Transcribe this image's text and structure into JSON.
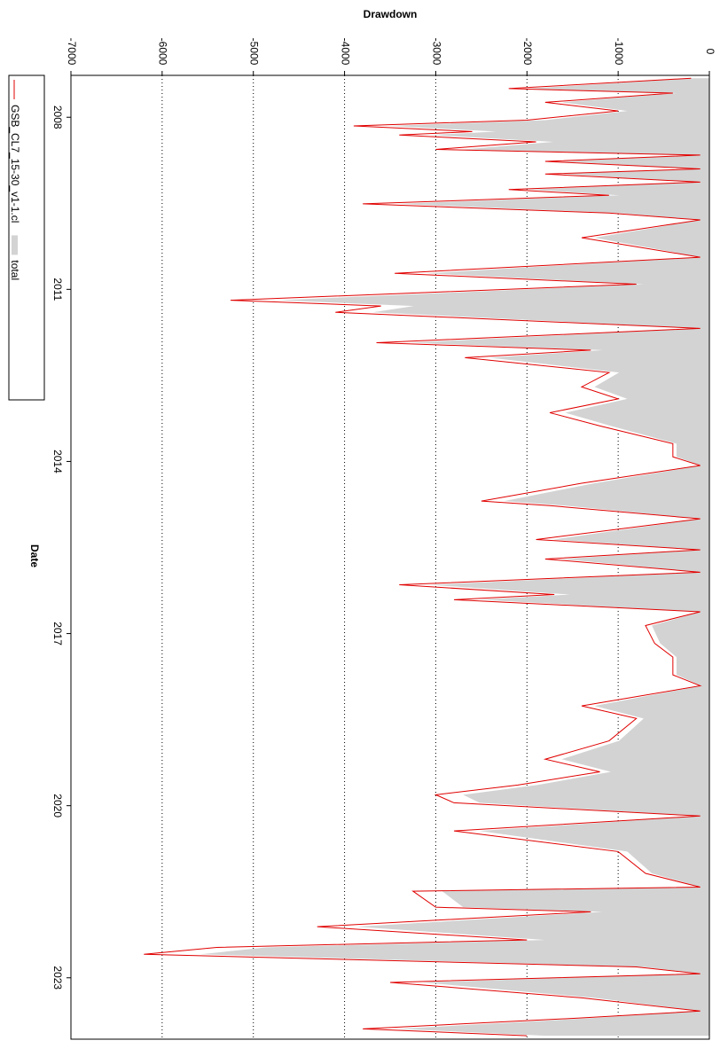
{
  "chart_data": {
    "type": "area",
    "title": "Drawdown",
    "x_label": "Date",
    "xlim": [
      2007.27,
      2024.07
    ],
    "xticks": [
      2008,
      2011,
      2014,
      2017,
      2020,
      2023
    ],
    "ylim": [
      -7000,
      0
    ],
    "yticks": [
      -7000,
      -6000,
      -5000,
      -4000,
      -3000,
      -2000,
      -1000,
      0
    ],
    "grid": true,
    "legend": "left",
    "x": [
      2007.32,
      2007.5,
      2007.58,
      2007.74,
      2007.89,
      2008.05,
      2008.15,
      2008.25,
      2008.31,
      2008.43,
      2008.56,
      2008.66,
      2008.77,
      2008.9,
      2008.99,
      2009.13,
      2009.26,
      2009.36,
      2009.51,
      2009.67,
      2009.79,
      2010.1,
      2010.44,
      2010.72,
      2010.91,
      2011.19,
      2011.29,
      2011.4,
      2011.68,
      2011.93,
      2012.06,
      2012.19,
      2012.45,
      2012.7,
      2012.91,
      2013.15,
      2013.38,
      2013.69,
      2013.92,
      2014.07,
      2014.38,
      2014.69,
      2014.77,
      2015.0,
      2015.36,
      2015.54,
      2015.7,
      2015.93,
      2016.15,
      2016.32,
      2016.41,
      2016.62,
      2016.86,
      2017.17,
      2017.41,
      2017.72,
      2017.91,
      2018.26,
      2018.48,
      2018.87,
      2019.19,
      2019.41,
      2019.64,
      2019.81,
      2019.95,
      2020.18,
      2020.44,
      2020.8,
      2021.18,
      2021.42,
      2021.49,
      2021.77,
      2021.85,
      2022.11,
      2022.34,
      2022.47,
      2022.59,
      2022.81,
      2022.93,
      2023.08,
      2023.35,
      2023.58,
      2023.7,
      2023.89,
      2024.01
    ],
    "series": [
      {
        "name": "total",
        "color": "#d3d3d3",
        "style": "area",
        "values": [
          -180,
          -1980,
          -360,
          -1620,
          -900,
          -1800,
          -3510,
          -2340,
          -3060,
          -1710,
          -2700,
          -90,
          -1620,
          -90,
          -1620,
          -90,
          -1980,
          -990,
          -3420,
          -990,
          -90,
          -1260,
          -90,
          -3100,
          -720,
          -4730,
          -3240,
          -3690,
          -90,
          -3290,
          -1170,
          -2410,
          -990,
          -1260,
          -900,
          -1580,
          -1080,
          -360,
          -360,
          -90,
          -1260,
          -2250,
          -1580,
          -90,
          -1710,
          -90,
          -1620,
          -90,
          -3060,
          -1530,
          -2520,
          -90,
          -630,
          -540,
          -360,
          -360,
          -90,
          -1260,
          -720,
          -990,
          -1620,
          -1080,
          -1890,
          -2700,
          -2520,
          -90,
          -2520,
          -900,
          -630,
          -90,
          -2930,
          -2700,
          -1170,
          -3870,
          -1800,
          -4860,
          -5580,
          -720,
          -90,
          -3150,
          -1260,
          -90,
          -1260,
          -3420,
          -1800
        ]
      },
      {
        "name": "GSB_CL7_15-30_v1-1.cl",
        "color": "#e00000",
        "style": "line",
        "values": [
          -200,
          -2200,
          -400,
          -1800,
          -1000,
          -2000,
          -3900,
          -2600,
          -3400,
          -1900,
          -3000,
          -100,
          -1800,
          -100,
          -1800,
          -100,
          -2200,
          -1100,
          -3800,
          -1100,
          -100,
          -1400,
          -100,
          -3450,
          -800,
          -5250,
          -3600,
          -4100,
          -100,
          -3650,
          -1300,
          -2680,
          -1100,
          -1400,
          -1000,
          -1750,
          -1200,
          -400,
          -400,
          -100,
          -1400,
          -2500,
          -1750,
          -100,
          -1900,
          -100,
          -1800,
          -100,
          -3400,
          -1700,
          -2800,
          -100,
          -700,
          -600,
          -400,
          -400,
          -100,
          -1400,
          -800,
          -1100,
          -1800,
          -1200,
          -2100,
          -3000,
          -2800,
          -100,
          -2800,
          -1000,
          -700,
          -100,
          -3250,
          -3000,
          -1300,
          -4300,
          -2000,
          -5400,
          -6200,
          -800,
          -100,
          -3500,
          -1400,
          -100,
          -1400,
          -3800,
          -2000
        ]
      }
    ]
  }
}
